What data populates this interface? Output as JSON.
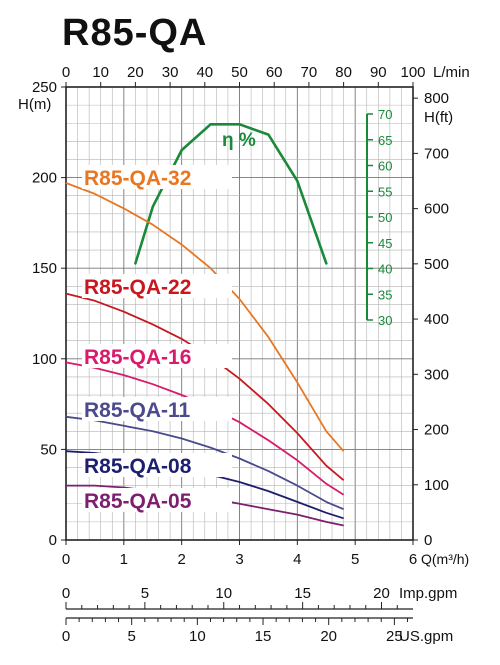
{
  "chart_data": {
    "type": "line",
    "title": "R85-QA",
    "x": {
      "label": "Q(m³/h)",
      "range": [
        0,
        6
      ],
      "ticks": [
        "0",
        "1",
        "2",
        "3",
        "4",
        "5",
        "6"
      ],
      "tick_values": [
        0,
        1,
        2,
        3,
        4,
        5,
        6
      ]
    },
    "x_top": {
      "label": "L/min",
      "range": [
        0,
        100
      ],
      "ticks": [
        "0",
        "10",
        "20",
        "30",
        "40",
        "50",
        "60",
        "70",
        "80",
        "90",
        "100"
      ],
      "tick_values": [
        0,
        10,
        20,
        30,
        40,
        50,
        60,
        70,
        80,
        90,
        100
      ]
    },
    "y_left": {
      "label": "H(m)",
      "range": [
        0,
        250
      ],
      "ticks": [
        "0",
        "50",
        "100",
        "150",
        "200",
        "250"
      ],
      "tick_values": [
        0,
        50,
        100,
        150,
        200,
        250
      ]
    },
    "y_right": {
      "label": "H(ft)",
      "ticks": [
        "0",
        "100",
        "200",
        "300",
        "400",
        "500",
        "600",
        "700",
        "800"
      ],
      "tick_values": [
        0,
        100,
        200,
        300,
        400,
        500,
        600,
        700,
        800
      ]
    },
    "efficiency_axis": {
      "label": "η %",
      "ticks": [
        "30",
        "35",
        "40",
        "45",
        "50",
        "55",
        "60",
        "65",
        "70"
      ],
      "tick_values": [
        30,
        35,
        40,
        45,
        50,
        55,
        60,
        65,
        70
      ]
    },
    "imp_gpm": {
      "label": "Imp.gpm",
      "ticks": [
        "0",
        "5",
        "10",
        "15",
        "20"
      ],
      "tick_values": [
        0,
        5,
        10,
        15,
        20
      ]
    },
    "us_gpm": {
      "label": "US.gpm",
      "ticks": [
        "0",
        "5",
        "10",
        "15",
        "20",
        "25"
      ],
      "tick_values": [
        0,
        5,
        10,
        15,
        20,
        25
      ]
    },
    "grid": true,
    "series": [
      {
        "name": "R85-QA-32",
        "color": "#e87722",
        "x": [
          0,
          0.5,
          1,
          1.5,
          2,
          2.5,
          3,
          3.5,
          4,
          4.5,
          4.8
        ],
        "y": [
          197,
          191,
          183,
          174,
          163,
          150,
          133,
          112,
          87,
          60,
          49
        ]
      },
      {
        "name": "R85-QA-22",
        "color": "#c8171e",
        "x": [
          0,
          0.5,
          1,
          1.5,
          2,
          2.5,
          3,
          3.5,
          4,
          4.5,
          4.8
        ],
        "y": [
          136,
          132,
          126,
          119,
          111,
          101,
          89,
          75,
          59,
          41,
          33
        ]
      },
      {
        "name": "R85-QA-16",
        "color": "#d81b6a",
        "x": [
          0,
          0.5,
          1,
          1.5,
          2,
          2.5,
          3,
          3.5,
          4,
          4.5,
          4.8
        ],
        "y": [
          98,
          95,
          91,
          86,
          80,
          73,
          65,
          55,
          44,
          31,
          25
        ]
      },
      {
        "name": "R85-QA-11",
        "color": "#4a4a8c",
        "x": [
          0,
          0.5,
          1,
          1.5,
          2,
          2.5,
          3,
          3.5,
          4,
          4.5,
          4.8
        ],
        "y": [
          68,
          66,
          63,
          60,
          56,
          51,
          45,
          38,
          30,
          21,
          17
        ]
      },
      {
        "name": "R85-QA-08",
        "color": "#1c1f6e",
        "x": [
          0,
          0.5,
          1,
          1.5,
          2,
          2.5,
          3,
          3.5,
          4,
          4.5,
          4.8
        ],
        "y": [
          49,
          48,
          46,
          43,
          40,
          36,
          32,
          27,
          21,
          15,
          12
        ]
      },
      {
        "name": "R85-QA-05",
        "color": "#7d1f6e",
        "x": [
          0,
          0.5,
          1,
          1.5,
          2,
          2.5,
          3,
          3.5,
          4,
          4.5,
          4.8
        ],
        "y": [
          30,
          30,
          29,
          27,
          25,
          23,
          20,
          17,
          14,
          10,
          8
        ]
      }
    ],
    "efficiency": {
      "name": "η %",
      "color": "#1a8a3a",
      "x": [
        1.2,
        1.5,
        2,
        2.5,
        3,
        3.5,
        4,
        4.5
      ],
      "y": [
        41,
        52,
        63,
        68,
        68,
        66,
        57,
        41
      ]
    }
  }
}
